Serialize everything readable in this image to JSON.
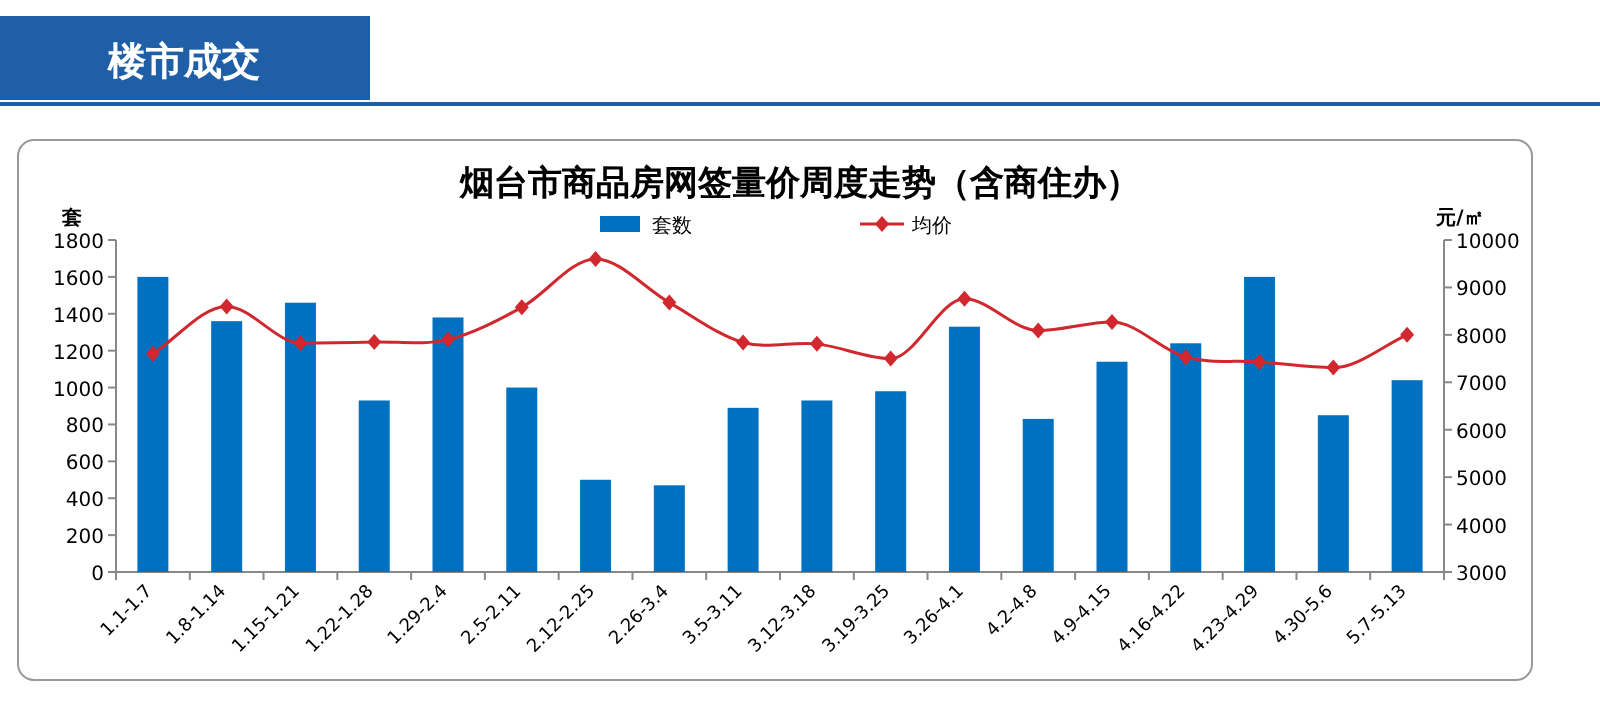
{
  "chart_data": {
    "type": "bar",
    "title": "烟台市商品房网签量价周度走势（含商住办）",
    "annotations": [
      "楼市成交"
    ],
    "ylabel": "套",
    "y2label": "元/㎡",
    "categories": [
      "1.1-1.7",
      "1.8-1.14",
      "1.15-1.21",
      "1.22-1.28",
      "1.29-2.4",
      "2.5-2.11",
      "2.12-2.25",
      "2.26-3.4",
      "3.5-3.11",
      "3.12-3.18",
      "3.19-3.25",
      "3.26-4.1",
      "4.2-4.8",
      "4.9-4.15",
      "4.16-4.22",
      "4.23-4.29",
      "4.30-5.6",
      "5.7-5.13"
    ],
    "series": [
      {
        "name": "套数",
        "color": "#0070c0",
        "values": [
          1600,
          1360,
          1460,
          930,
          1380,
          1000,
          500,
          470,
          890,
          930,
          980,
          1330,
          830,
          1140,
          1240,
          1600,
          850,
          1040
        ]
      },
      {
        "name": "均价",
        "type": "line",
        "axis": "y2",
        "color": "#d0282e",
        "marker": "diamond",
        "values": [
          7600,
          8600,
          7830,
          7850,
          7900,
          8580,
          9600,
          8680,
          7840,
          7810,
          7500,
          8760,
          8090,
          8270,
          7530,
          7430,
          7310,
          8000
        ]
      }
    ],
    "ylim": [
      0,
      1800
    ],
    "yticks": [
      0,
      200,
      400,
      600,
      800,
      1000,
      1200,
      1400,
      1600,
      1800
    ],
    "y2lim": [
      3000,
      10000
    ],
    "y2ticks": [
      3000,
      4000,
      5000,
      6000,
      7000,
      8000,
      9000,
      10000
    ],
    "legend": "top",
    "grid": false
  }
}
